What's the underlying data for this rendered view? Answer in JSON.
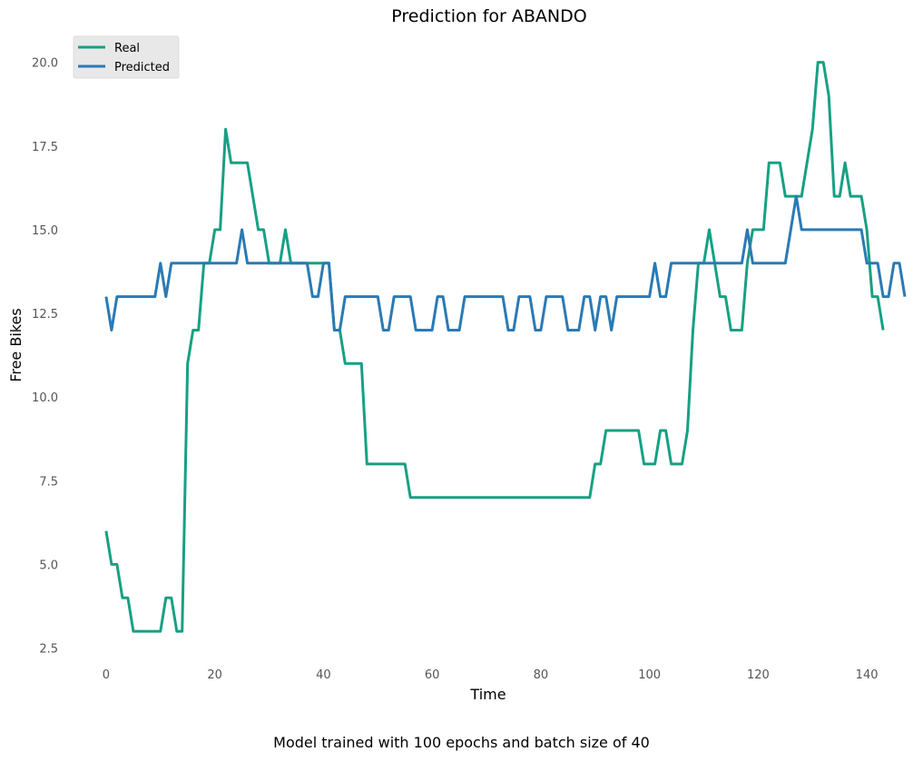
{
  "chart_data": {
    "type": "line",
    "title": "Prediction for ABANDO",
    "xlabel": "Time",
    "ylabel": "Free Bikes",
    "xlim": [
      -6,
      147
    ],
    "ylim": [
      2,
      20.75
    ],
    "xticks": [
      0,
      20,
      40,
      60,
      80,
      100,
      120,
      140
    ],
    "yticks": [
      2.5,
      5.0,
      7.5,
      10.0,
      12.5,
      15.0,
      17.5,
      20.0
    ],
    "ytick_labels": [
      "2.5",
      "5.0",
      "7.5",
      "10.0",
      "12.5",
      "15.0",
      "17.5",
      "20.0"
    ],
    "grid": false,
    "legend_position": "top-left",
    "series": [
      {
        "name": "Real",
        "color": "#17a084",
        "values": [
          6,
          5,
          5,
          4,
          4,
          3,
          3,
          3,
          3,
          3,
          3,
          4,
          4,
          3,
          3,
          11,
          12,
          12,
          14,
          14,
          15,
          15,
          18,
          17,
          17,
          17,
          17,
          16,
          15,
          15,
          14,
          14,
          14,
          15,
          14,
          14,
          14,
          14,
          14,
          14,
          14,
          14,
          12,
          12,
          11,
          11,
          11,
          11,
          8,
          8,
          8,
          8,
          8,
          8,
          8,
          8,
          7,
          7,
          7,
          7,
          7,
          7,
          7,
          7,
          7,
          7,
          7,
          7,
          7,
          7,
          7,
          7,
          7,
          7,
          7,
          7,
          7,
          7,
          7,
          7,
          7,
          7,
          7,
          7,
          7,
          7,
          7,
          7,
          7,
          7,
          8,
          8,
          9,
          9,
          9,
          9,
          9,
          9,
          9,
          8,
          8,
          8,
          9,
          9,
          8,
          8,
          8,
          9,
          12,
          14,
          14,
          15,
          14,
          13,
          13,
          12,
          12,
          12,
          14,
          15,
          15,
          15,
          17,
          17,
          17,
          16,
          16,
          16,
          16,
          17,
          18,
          20,
          20,
          19,
          16,
          16,
          17,
          16,
          16,
          16,
          15,
          13,
          13,
          12
        ]
      },
      {
        "name": "Predicted",
        "color": "#2a7ab5",
        "values": [
          13,
          12,
          13,
          13,
          13,
          13,
          13,
          13,
          13,
          13,
          14,
          13,
          14,
          14,
          14,
          14,
          14,
          14,
          14,
          14,
          14,
          14,
          14,
          14,
          14,
          15,
          14,
          14,
          14,
          14,
          14,
          14,
          14,
          14,
          14,
          14,
          14,
          14,
          13,
          13,
          14,
          14,
          12,
          12,
          13,
          13,
          13,
          13,
          13,
          13,
          13,
          12,
          12,
          13,
          13,
          13,
          13,
          12,
          12,
          12,
          12,
          13,
          13,
          12,
          12,
          12,
          13,
          13,
          13,
          13,
          13,
          13,
          13,
          13,
          12,
          12,
          13,
          13,
          13,
          12,
          12,
          13,
          13,
          13,
          13,
          12,
          12,
          12,
          13,
          13,
          12,
          13,
          13,
          12,
          13,
          13,
          13,
          13,
          13,
          13,
          13,
          14,
          13,
          13,
          14,
          14,
          14,
          14,
          14,
          14,
          14,
          14,
          14,
          14,
          14,
          14,
          14,
          14,
          15,
          14,
          14,
          14,
          14,
          14,
          14,
          14,
          15,
          16,
          15,
          15,
          15,
          15,
          15,
          15,
          15,
          15,
          15,
          15,
          15,
          15,
          14,
          14,
          14,
          13,
          13,
          14,
          14,
          13
        ]
      }
    ]
  },
  "caption": "Model trained with 100 epochs and batch size of 40"
}
